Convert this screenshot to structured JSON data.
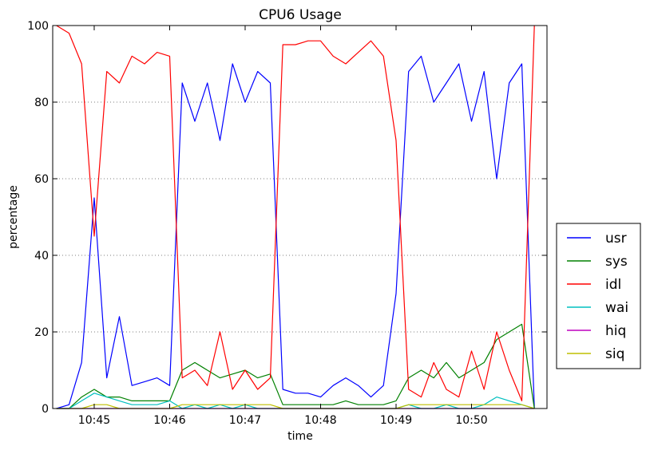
{
  "chart_data": {
    "type": "line",
    "title": "CPU6 Usage",
    "xlabel": "time",
    "ylabel": "percentage",
    "ylim": [
      0,
      100
    ],
    "xlim": [
      "10:44:27",
      "10:51:00"
    ],
    "yticks": [
      0,
      20,
      40,
      60,
      80,
      100
    ],
    "xticks": [
      "10:45",
      "10:46",
      "10:47",
      "10:48",
      "10:49",
      "10:50"
    ],
    "grid": "horizontal dotted at y ticks",
    "legend_position": "right, outside plot",
    "x": [
      "10:44:30",
      "10:44:40",
      "10:44:50",
      "10:45:00",
      "10:45:10",
      "10:45:20",
      "10:45:30",
      "10:45:40",
      "10:45:50",
      "10:46:00",
      "10:46:10",
      "10:46:20",
      "10:46:30",
      "10:46:40",
      "10:46:50",
      "10:47:00",
      "10:47:10",
      "10:47:20",
      "10:47:30",
      "10:47:40",
      "10:47:50",
      "10:48:00",
      "10:48:10",
      "10:48:20",
      "10:48:30",
      "10:48:40",
      "10:48:50",
      "10:49:00",
      "10:49:10",
      "10:49:20",
      "10:49:30",
      "10:49:40",
      "10:49:50",
      "10:50:00",
      "10:50:10",
      "10:50:20",
      "10:50:30",
      "10:50:40",
      "10:50:50"
    ],
    "series": [
      {
        "name": "usr",
        "color": "#0000ff",
        "values": [
          0,
          1,
          12,
          55,
          8,
          24,
          6,
          7,
          8,
          6,
          85,
          75,
          85,
          70,
          90,
          80,
          88,
          85,
          5,
          4,
          4,
          3,
          6,
          8,
          6,
          3,
          6,
          30,
          88,
          92,
          80,
          85,
          90,
          75,
          88,
          60,
          85,
          90,
          0
        ]
      },
      {
        "name": "sys",
        "color": "#008000",
        "values": [
          0,
          0,
          3,
          5,
          3,
          3,
          2,
          2,
          2,
          2,
          10,
          12,
          10,
          8,
          9,
          10,
          8,
          9,
          1,
          1,
          1,
          1,
          1,
          2,
          1,
          1,
          1,
          2,
          8,
          10,
          8,
          12,
          8,
          10,
          12,
          18,
          20,
          22,
          0
        ]
      },
      {
        "name": "idl",
        "color": "#ff0000",
        "values": [
          100,
          98,
          90,
          45,
          88,
          85,
          92,
          90,
          93,
          92,
          8,
          10,
          6,
          20,
          5,
          10,
          5,
          8,
          95,
          95,
          96,
          96,
          92,
          90,
          93,
          96,
          92,
          70,
          5,
          3,
          12,
          5,
          3,
          15,
          5,
          20,
          10,
          2,
          100
        ]
      },
      {
        "name": "wai",
        "color": "#00bfbf",
        "values": [
          0,
          0,
          2,
          4,
          3,
          2,
          1,
          1,
          1,
          2,
          0,
          1,
          0,
          1,
          0,
          1,
          0,
          0,
          0,
          0,
          0,
          0,
          0,
          0,
          0,
          0,
          0,
          0,
          1,
          0,
          0,
          1,
          0,
          0,
          1,
          3,
          2,
          1,
          0
        ]
      },
      {
        "name": "hiq",
        "color": "#bf00bf",
        "values": [
          0,
          0,
          0,
          0,
          0,
          0,
          0,
          0,
          0,
          0,
          0,
          0,
          0,
          0,
          0,
          0,
          0,
          0,
          0,
          0,
          0,
          0,
          0,
          0,
          0,
          0,
          0,
          0,
          0,
          0,
          0,
          0,
          0,
          0,
          0,
          0,
          0,
          0,
          0
        ]
      },
      {
        "name": "siq",
        "color": "#bfbf00",
        "values": [
          0,
          0,
          0,
          1,
          1,
          0,
          0,
          0,
          0,
          0,
          1,
          1,
          1,
          1,
          1,
          1,
          1,
          1,
          0,
          0,
          0,
          0,
          0,
          0,
          0,
          0,
          0,
          0,
          1,
          1,
          1,
          1,
          1,
          1,
          1,
          1,
          1,
          1,
          0
        ]
      }
    ]
  }
}
